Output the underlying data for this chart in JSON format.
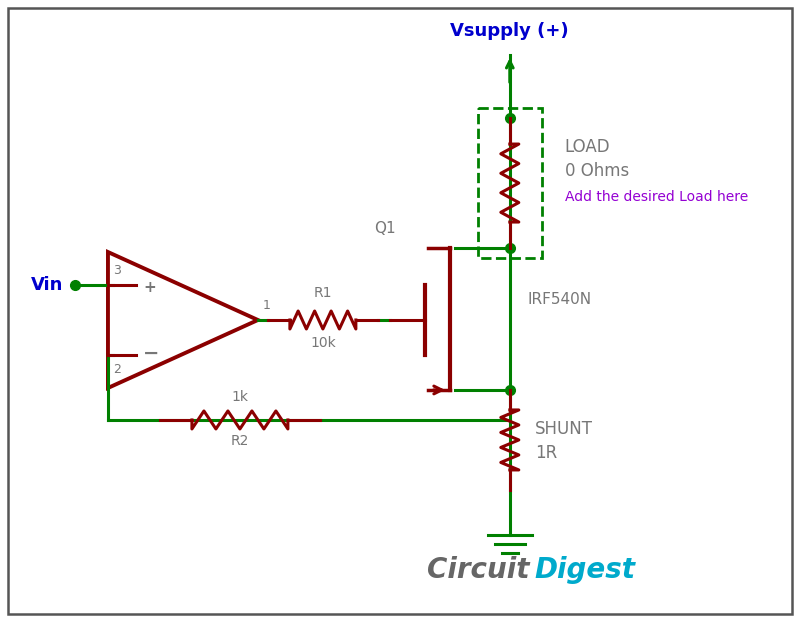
{
  "bg_color": "#ffffff",
  "border_color": "#444444",
  "green_wire": "#008000",
  "dark_red": "#8B0000",
  "gray_text": "#777777",
  "purple_text": "#9400D3",
  "blue_text": "#0000CD",
  "cd_gray": "#666666",
  "cd_blue": "#00AACC",
  "vsupply_label": "Vsupply (+)",
  "vin_label": "Vin",
  "load_label1": "LOAD",
  "load_label2": "0 Ohms",
  "add_load_label": "Add the desired Load here",
  "q1_label": "Q1",
  "irf_label": "IRF540N",
  "r1_label": "R1",
  "r1_val": "10k",
  "r2_label": "R2",
  "r2_val": "1k",
  "shunt_label1": "SHUNT",
  "shunt_label2": "1R",
  "op_plus": "+",
  "op_minus": "−",
  "op_pin3": "3",
  "op_pin2": "2",
  "op_pin1": "1",
  "cd_text1": "Circuit",
  "cd_text2": "Digest"
}
